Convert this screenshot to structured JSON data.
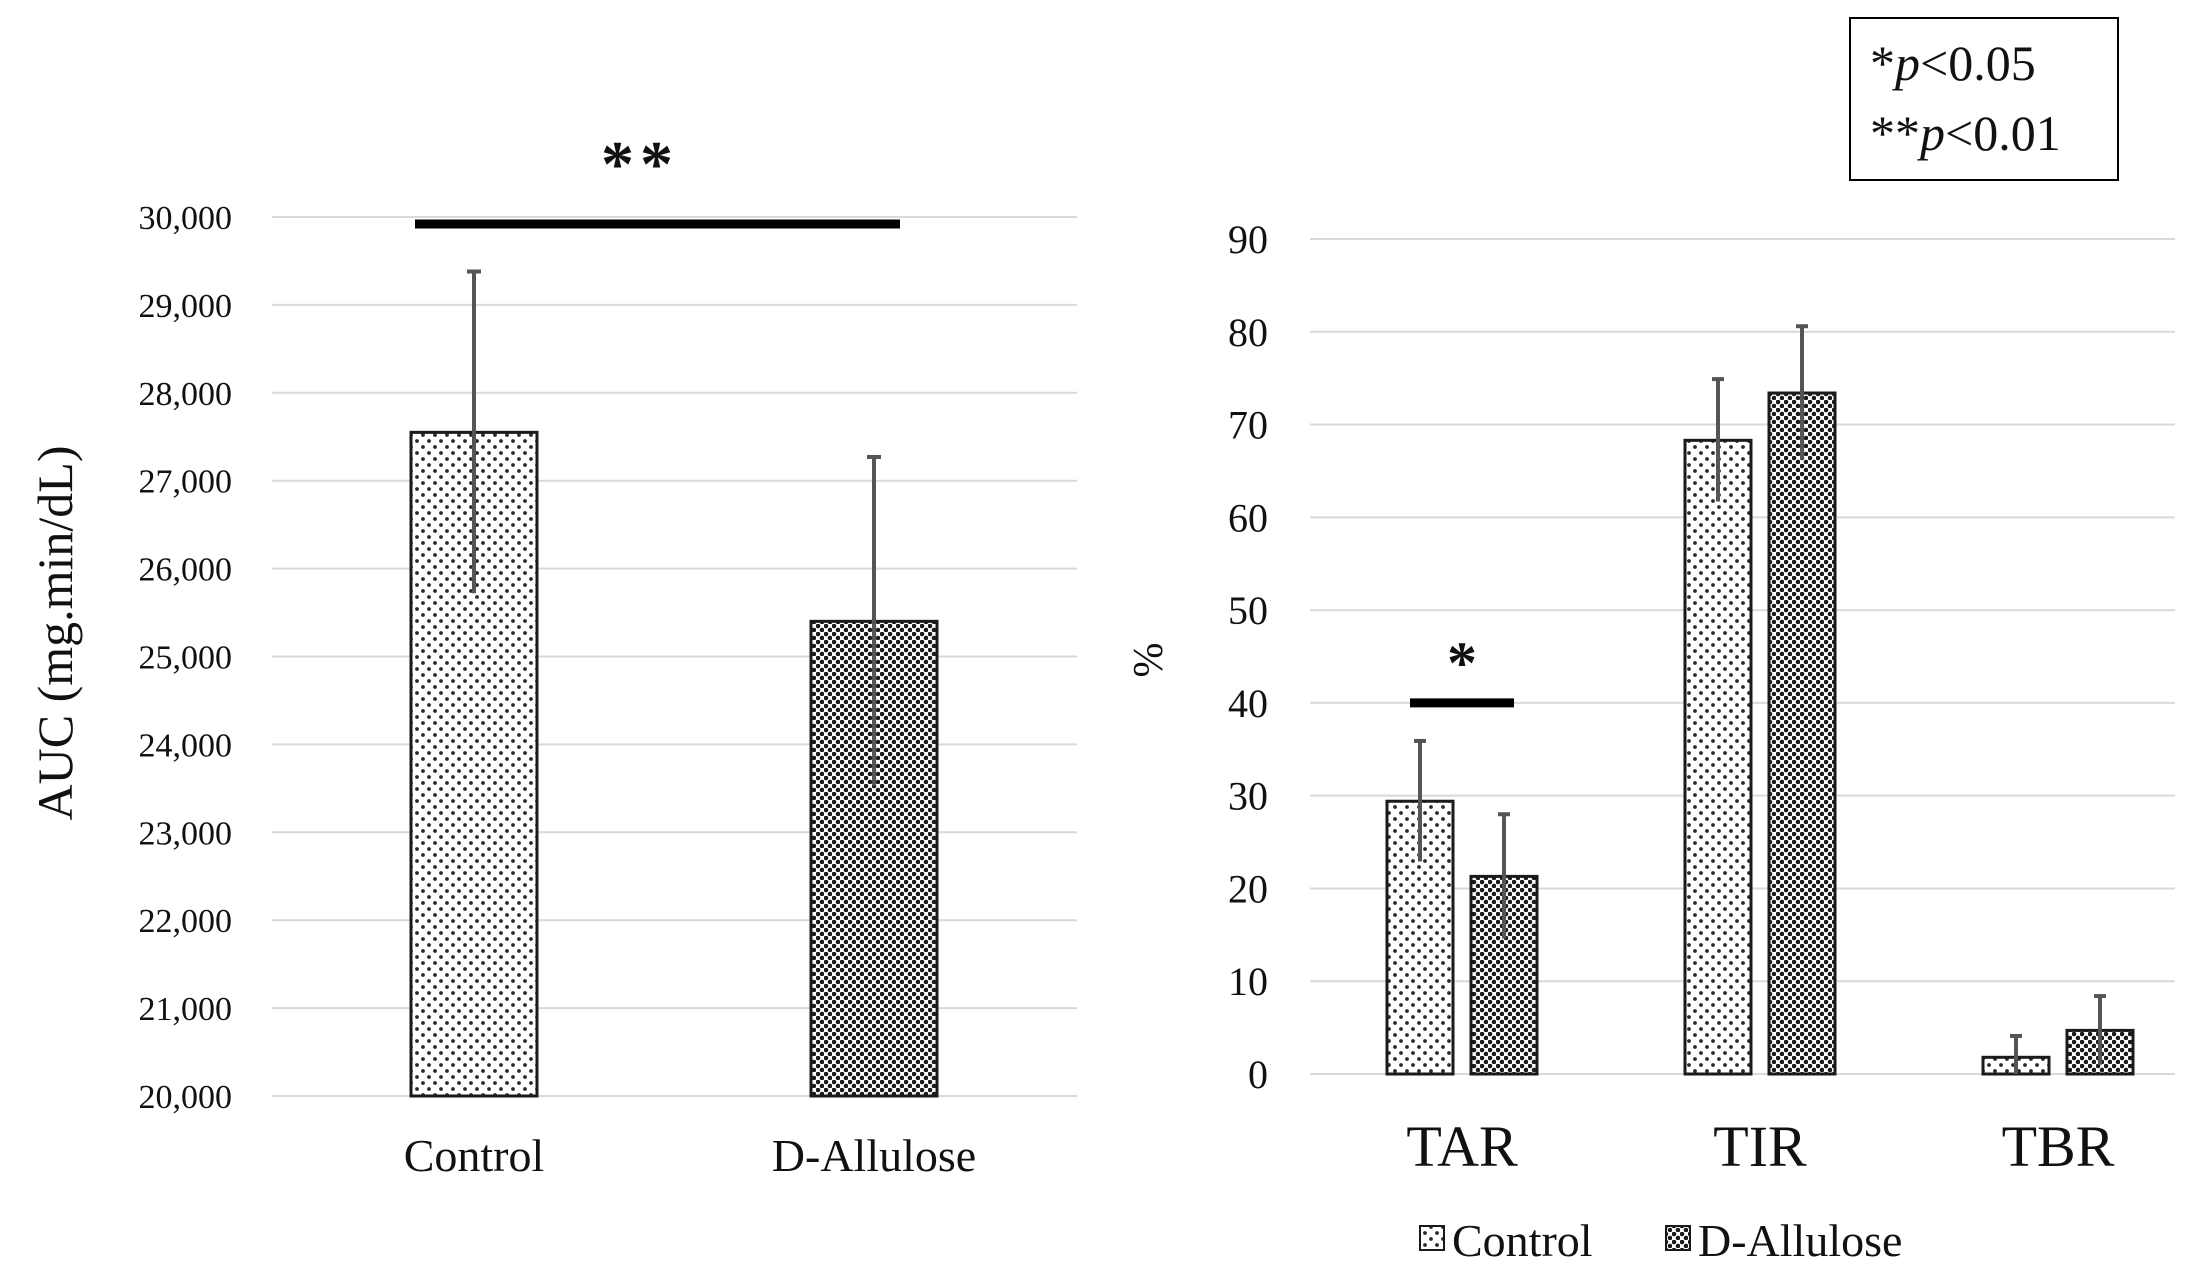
{
  "colors": {
    "grid": "#d9d9d9",
    "bar_outline": "#1a1a1a",
    "error_bar": "#555555",
    "significance_bar": "#000000",
    "control_fill": "#ffffff",
    "control_dot": "#2b2b2b",
    "allulose_fill": "#ffffff",
    "allulose_dot": "#1a1a1a"
  },
  "chart_data": [
    {
      "type": "bar",
      "title": "",
      "xlabel": "",
      "ylabel": "AUC (mg.min/dL)",
      "ylim": [
        20000,
        30000
      ],
      "yticks": [
        "20,000",
        "21,000",
        "22,000",
        "23,000",
        "24,000",
        "25,000",
        "26,000",
        "27,000",
        "28,000",
        "29,000",
        "30,000"
      ],
      "categories": [
        "Control",
        "D-Allulose"
      ],
      "values": [
        27550,
        25400
      ],
      "errors": [
        1830,
        1870
      ],
      "patterns": [
        "control",
        "allulose"
      ],
      "significance": [
        {
          "from": 0,
          "to": 1,
          "label": "**",
          "level": 29920
        }
      ],
      "grid": true
    },
    {
      "type": "bar",
      "title": "",
      "xlabel": "",
      "ylabel": "%",
      "ylim": [
        0,
        90
      ],
      "yticks": [
        "0",
        "10",
        "20",
        "30",
        "40",
        "50",
        "60",
        "70",
        "80",
        "90"
      ],
      "categories": [
        "TAR",
        "TIR",
        "TBR"
      ],
      "series": [
        {
          "name": "Control",
          "values": [
            29.4,
            68.3,
            1.8
          ],
          "errors": [
            6.5,
            6.6,
            2.3
          ]
        },
        {
          "name": "D-Allulose",
          "values": [
            21.3,
            73.4,
            4.7
          ],
          "errors": [
            6.7,
            7.2,
            3.7
          ]
        }
      ],
      "significance": [
        {
          "category": 0,
          "label": "*",
          "level": 40
        }
      ],
      "legend": {
        "position": "bottom",
        "entries": [
          "Control",
          "D-Allulose"
        ]
      },
      "grid": true
    }
  ],
  "annotation_box": {
    "line1_prefix": "*",
    "line1_p": "p",
    "line1_value": "<0.05",
    "line2_prefix": "**",
    "line2_p": "p",
    "line2_value": "<0.01"
  }
}
